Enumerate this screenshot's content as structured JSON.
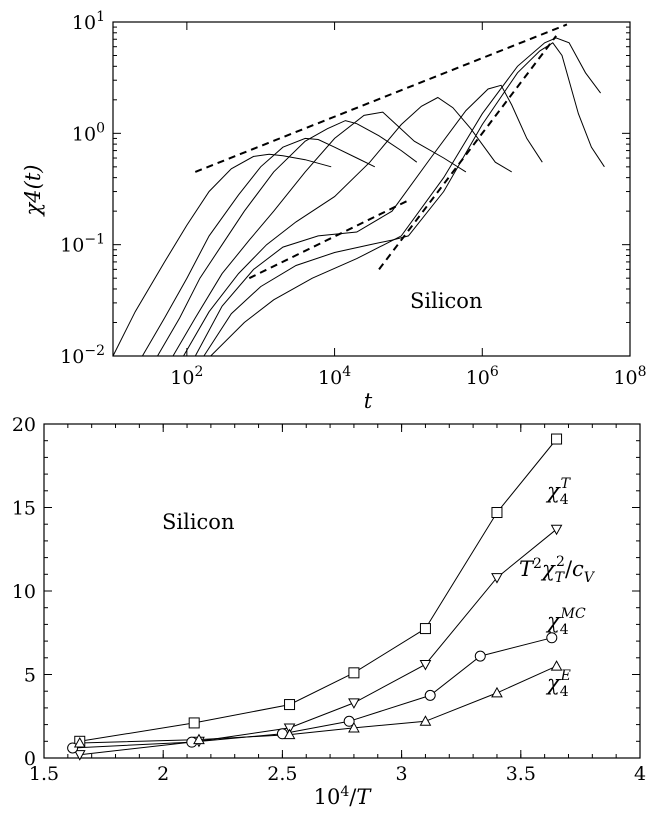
{
  "chart_data": [
    {
      "type": "line",
      "xscale": "log",
      "yscale": "log",
      "xlim": [
        10,
        100000000
      ],
      "ylim": [
        0.01,
        10
      ],
      "xlabel": "t",
      "ylabel": "χ4(t)",
      "x_tick_labels": [
        {
          "value": 100,
          "base": "10",
          "exp": "2"
        },
        {
          "value": 10000,
          "base": "10",
          "exp": "4"
        },
        {
          "value": 1000000,
          "base": "10",
          "exp": "6"
        },
        {
          "value": 100000000,
          "base": "10",
          "exp": "8"
        }
      ],
      "y_tick_labels": [
        {
          "value": 0.01,
          "base": "10",
          "exp": "−2"
        },
        {
          "value": 0.1,
          "base": "10",
          "exp": "−1"
        },
        {
          "value": 1,
          "base": "10",
          "exp": "0"
        },
        {
          "value": 10,
          "base": "10",
          "exp": "1"
        }
      ],
      "annotation": "Silicon",
      "series": [
        {
          "points": [
            [
              10,
              0.01
            ],
            [
              20,
              0.025
            ],
            [
              50,
              0.07
            ],
            [
              100,
              0.15
            ],
            [
              200,
              0.3
            ],
            [
              400,
              0.48
            ],
            [
              800,
              0.62
            ],
            [
              1300,
              0.65
            ],
            [
              2000,
              0.63
            ],
            [
              4000,
              0.58
            ],
            [
              9000,
              0.5
            ]
          ]
        },
        {
          "points": [
            [
              25,
              0.01
            ],
            [
              50,
              0.022
            ],
            [
              100,
              0.05
            ],
            [
              200,
              0.12
            ],
            [
              500,
              0.28
            ],
            [
              1000,
              0.5
            ],
            [
              2000,
              0.75
            ],
            [
              4000,
              0.9
            ],
            [
              6000,
              0.88
            ],
            [
              10000,
              0.75
            ],
            [
              20000,
              0.6
            ],
            [
              35000,
              0.5
            ]
          ]
        },
        {
          "points": [
            [
              40,
              0.01
            ],
            [
              80,
              0.022
            ],
            [
              150,
              0.05
            ],
            [
              300,
              0.1
            ],
            [
              600,
              0.2
            ],
            [
              1500,
              0.45
            ],
            [
              4000,
              0.85
            ],
            [
              8000,
              1.1
            ],
            [
              14000,
              1.3
            ],
            [
              20000,
              1.22
            ],
            [
              40000,
              0.95
            ],
            [
              80000,
              0.7
            ],
            [
              130000,
              0.55
            ]
          ]
        },
        {
          "points": [
            [
              65,
              0.01
            ],
            [
              130,
              0.022
            ],
            [
              300,
              0.055
            ],
            [
              700,
              0.11
            ],
            [
              1500,
              0.2
            ],
            [
              4000,
              0.45
            ],
            [
              10000,
              0.9
            ],
            [
              25000,
              1.45
            ],
            [
              45000,
              1.55
            ],
            [
              60000,
              1.3
            ],
            [
              120000,
              0.85
            ],
            [
              300000,
              0.6
            ],
            [
              600000,
              0.45
            ]
          ]
        },
        {
          "points": [
            [
              90,
              0.01
            ],
            [
              200,
              0.025
            ],
            [
              500,
              0.055
            ],
            [
              1200,
              0.1
            ],
            [
              3000,
              0.16
            ],
            [
              10000,
              0.27
            ],
            [
              30000,
              0.55
            ],
            [
              80000,
              1.2
            ],
            [
              150000,
              1.75
            ],
            [
              250000,
              2.1
            ],
            [
              400000,
              1.7
            ],
            [
              700000,
              1.1
            ],
            [
              1500000,
              0.55
            ],
            [
              2500000,
              0.45
            ]
          ]
        },
        {
          "points": [
            [
              130,
              0.01
            ],
            [
              300,
              0.028
            ],
            [
              800,
              0.06
            ],
            [
              2000,
              0.095
            ],
            [
              6000,
              0.12
            ],
            [
              20000,
              0.13
            ],
            [
              60000,
              0.2
            ],
            [
              200000,
              0.6
            ],
            [
              600000,
              1.6
            ],
            [
              1200000,
              2.5
            ],
            [
              1800000,
              2.7
            ],
            [
              2500000,
              1.8
            ],
            [
              4000000,
              0.9
            ],
            [
              6500000,
              0.55
            ]
          ]
        },
        {
          "points": [
            [
              170,
              0.01
            ],
            [
              400,
              0.024
            ],
            [
              1000,
              0.042
            ],
            [
              3000,
              0.065
            ],
            [
              10000,
              0.085
            ],
            [
              30000,
              0.1
            ],
            [
              60000,
              0.11
            ],
            [
              100000,
              0.12
            ],
            [
              300000,
              0.3
            ],
            [
              1000000,
              1.2
            ],
            [
              3000000,
              3.5
            ],
            [
              6000000,
              5.5
            ],
            [
              9000000,
              6.5
            ],
            [
              12000000,
              5.0
            ],
            [
              20000000,
              1.5
            ],
            [
              30000000,
              0.75
            ],
            [
              45000000,
              0.5
            ]
          ]
        },
        {
          "points": [
            [
              210,
              0.01
            ],
            [
              600,
              0.02
            ],
            [
              1500,
              0.032
            ],
            [
              5000,
              0.05
            ],
            [
              20000,
              0.075
            ],
            [
              80000,
              0.12
            ],
            [
              300000,
              0.4
            ],
            [
              1000000,
              1.5
            ],
            [
              3000000,
              4.0
            ],
            [
              7000000,
              6.5
            ],
            [
              10000000,
              7.2
            ],
            [
              15000000,
              6.5
            ],
            [
              25000000,
              3.5
            ],
            [
              40000000,
              2.3
            ]
          ]
        }
      ],
      "dashed_guides": [
        {
          "from": [
            130,
            0.45
          ],
          "to": [
            14000000,
            9.5
          ]
        },
        {
          "from": [
            700,
            0.05
          ],
          "to": [
            100000,
            0.25
          ]
        },
        {
          "from": [
            40000,
            0.06
          ],
          "to": [
            10000000,
            7.5
          ]
        }
      ]
    },
    {
      "type": "line",
      "xlim": [
        1.5,
        4
      ],
      "ylim": [
        0,
        20
      ],
      "xlabel": "10^4/T",
      "ylabel": "",
      "x_ticks": [
        "1.5",
        "2",
        "2.5",
        "3",
        "3.5",
        "4"
      ],
      "y_ticks": [
        "0",
        "5",
        "10",
        "15",
        "20"
      ],
      "annotation": "Silicon",
      "series": [
        {
          "name": "χ4^T",
          "marker": "square",
          "x": [
            1.65,
            2.13,
            2.53,
            2.8,
            3.1,
            3.4,
            3.65
          ],
          "y": [
            1.0,
            2.1,
            3.2,
            5.1,
            7.75,
            14.7,
            19.1
          ]
        },
        {
          "name": "T^2 χT^2/cV",
          "marker": "triangle-down",
          "x": [
            1.65,
            2.15,
            2.53,
            2.8,
            3.1,
            3.4,
            3.65
          ],
          "y": [
            0.2,
            1.0,
            1.8,
            3.3,
            5.6,
            10.8,
            13.7
          ]
        },
        {
          "name": "χ4^MC",
          "marker": "circle",
          "x": [
            1.62,
            2.12,
            2.5,
            2.78,
            3.12,
            3.33,
            3.63
          ],
          "y": [
            0.6,
            0.95,
            1.45,
            2.2,
            3.75,
            6.1,
            7.2
          ]
        },
        {
          "name": "χ4^E",
          "marker": "triangle-up",
          "x": [
            1.65,
            2.15,
            2.53,
            2.8,
            3.1,
            3.4,
            3.65
          ],
          "y": [
            0.9,
            1.1,
            1.4,
            1.8,
            2.2,
            3.9,
            5.5
          ]
        }
      ]
    }
  ]
}
